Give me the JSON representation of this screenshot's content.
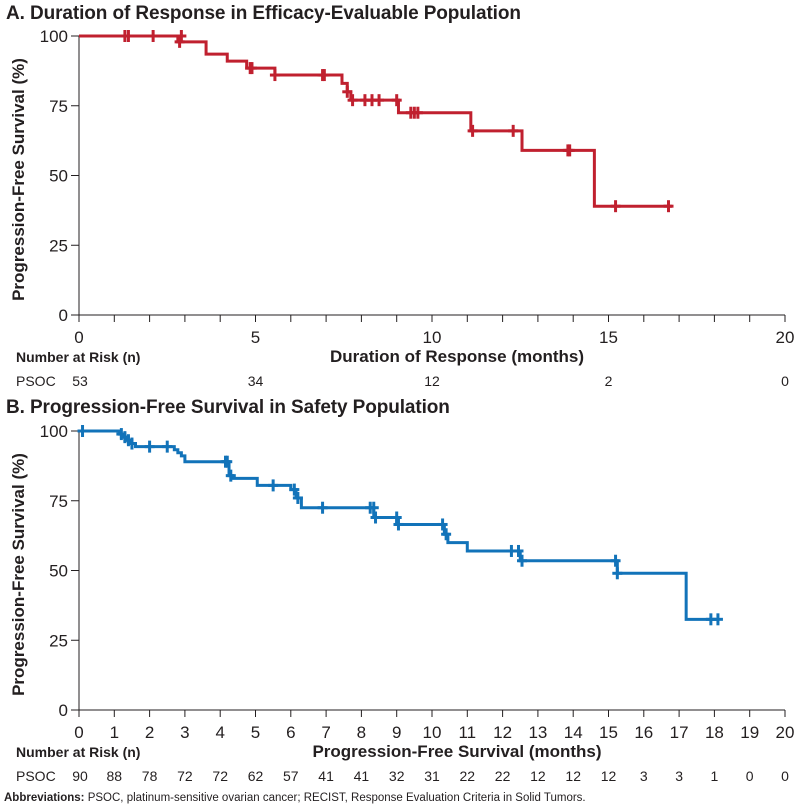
{
  "chart_data": [
    {
      "id": "A",
      "type": "line",
      "subtype": "kaplan-meier",
      "title": "A. Duration of Response in Efficacy-Evaluable Population",
      "xlabel": "Duration of Response (months)",
      "ylabel": "Progression-Free Survival (%)",
      "xlim": [
        0,
        20
      ],
      "ylim": [
        0,
        100
      ],
      "x_ticks": [
        0,
        1,
        2,
        3,
        4,
        5,
        6,
        7,
        8,
        9,
        10,
        11,
        12,
        13,
        14,
        15,
        16,
        17,
        18,
        19,
        20
      ],
      "x_tick_labels": [
        "0",
        "5",
        "10",
        "15",
        "20"
      ],
      "x_tick_label_values": [
        0,
        5,
        10,
        15,
        20
      ],
      "y_ticks": [
        0,
        25,
        50,
        75,
        100
      ],
      "y_tick_labels": [
        "0",
        "25",
        "50",
        "75",
        "100"
      ],
      "grid": false,
      "color": "#C0202F",
      "series": [
        {
          "name": "PSOC",
          "steps": [
            [
              0,
              100
            ],
            [
              2.8,
              97.9
            ],
            [
              3.6,
              93.5
            ],
            [
              4.2,
              91
            ],
            [
              4.75,
              88.5
            ],
            [
              5.55,
              86
            ],
            [
              7.45,
              83
            ],
            [
              7.6,
              80
            ],
            [
              7.7,
              77
            ],
            [
              9.05,
              72.5
            ],
            [
              11.1,
              66
            ],
            [
              12.55,
              59
            ],
            [
              14.6,
              39
            ],
            [
              16.8,
              39
            ]
          ],
          "censored": [
            [
              1.3,
              100
            ],
            [
              1.4,
              100
            ],
            [
              2.1,
              100
            ],
            [
              2.9,
              100
            ],
            [
              2.85,
              97.9
            ],
            [
              4.85,
              88.5
            ],
            [
              4.9,
              88.5
            ],
            [
              5.55,
              86
            ],
            [
              6.9,
              86
            ],
            [
              6.95,
              86
            ],
            [
              7.6,
              80
            ],
            [
              7.75,
              77
            ],
            [
              8.1,
              77
            ],
            [
              8.3,
              77
            ],
            [
              8.5,
              77
            ],
            [
              9.0,
              77
            ],
            [
              9.4,
              72.5
            ],
            [
              9.5,
              72.5
            ],
            [
              9.6,
              72.5
            ],
            [
              11.15,
              66
            ],
            [
              12.3,
              66
            ],
            [
              13.85,
              59
            ],
            [
              13.9,
              59
            ],
            [
              15.2,
              39
            ],
            [
              16.7,
              39
            ]
          ]
        }
      ],
      "risk_table": {
        "header": "Number at Risk (n)",
        "row_label": "PSOC",
        "times": [
          0,
          5,
          10,
          15,
          20
        ],
        "values": [
          "53",
          "34",
          "12",
          "2",
          "0"
        ]
      }
    },
    {
      "id": "B",
      "type": "line",
      "subtype": "kaplan-meier",
      "title": "B.  Progression-Free Survival in Safety Population",
      "xlabel": "Progression-Free Survival (months)",
      "ylabel": "Progression-Free Survival (%)",
      "xlim": [
        0,
        20
      ],
      "ylim": [
        0,
        100
      ],
      "x_ticks": [
        0,
        1,
        2,
        3,
        4,
        5,
        6,
        7,
        8,
        9,
        10,
        11,
        12,
        13,
        14,
        15,
        16,
        17,
        18,
        19,
        20
      ],
      "x_tick_labels": [
        "0",
        "1",
        "2",
        "3",
        "4",
        "5",
        "6",
        "7",
        "8",
        "9",
        "10",
        "11",
        "12",
        "13",
        "14",
        "15",
        "16",
        "17",
        "18",
        "19",
        "20"
      ],
      "x_tick_label_values": [
        0,
        1,
        2,
        3,
        4,
        5,
        6,
        7,
        8,
        9,
        10,
        11,
        12,
        13,
        14,
        15,
        16,
        17,
        18,
        19,
        20
      ],
      "y_ticks": [
        0,
        25,
        50,
        75,
        100
      ],
      "y_tick_labels": [
        "0",
        "25",
        "50",
        "75",
        "100"
      ],
      "grid": false,
      "color": "#1273B9",
      "series": [
        {
          "name": "PSOC",
          "steps": [
            [
              0,
              100
            ],
            [
              1.15,
              98.9
            ],
            [
              1.25,
              97.8
            ],
            [
              1.35,
              96.7
            ],
            [
              1.45,
              95.5
            ],
            [
              1.6,
              94.4
            ],
            [
              2.7,
              93.3
            ],
            [
              2.8,
              92.2
            ],
            [
              2.9,
              91.1
            ],
            [
              3.0,
              89
            ],
            [
              4.25,
              84
            ],
            [
              4.35,
              83
            ],
            [
              5.05,
              80.5
            ],
            [
              6.0,
              79
            ],
            [
              6.15,
              76
            ],
            [
              6.3,
              72.5
            ],
            [
              8.35,
              69
            ],
            [
              9.0,
              66.5
            ],
            [
              10.35,
              63
            ],
            [
              10.45,
              60
            ],
            [
              11.0,
              57
            ],
            [
              12.5,
              53.5
            ],
            [
              15.25,
              49
            ],
            [
              17.2,
              32.5
            ],
            [
              18.1,
              32.5
            ]
          ],
          "censored": [
            [
              0.1,
              100
            ],
            [
              1.2,
              98.9
            ],
            [
              1.3,
              97.8
            ],
            [
              1.4,
              96.7
            ],
            [
              1.5,
              95.5
            ],
            [
              2.0,
              94.4
            ],
            [
              2.5,
              94.4
            ],
            [
              4.15,
              89
            ],
            [
              4.2,
              89
            ],
            [
              4.3,
              84
            ],
            [
              5.5,
              80.5
            ],
            [
              6.1,
              79
            ],
            [
              6.2,
              76
            ],
            [
              6.9,
              72.5
            ],
            [
              8.25,
              72.5
            ],
            [
              8.35,
              72.5
            ],
            [
              8.4,
              69
            ],
            [
              9.0,
              69
            ],
            [
              9.05,
              66.5
            ],
            [
              10.3,
              66.5
            ],
            [
              10.4,
              63
            ],
            [
              12.25,
              57
            ],
            [
              12.45,
              57
            ],
            [
              12.55,
              53.5
            ],
            [
              15.2,
              53.5
            ],
            [
              15.25,
              49
            ],
            [
              17.9,
              32.5
            ],
            [
              18.1,
              32.5
            ]
          ]
        }
      ],
      "risk_table": {
        "header": "Number at Risk (n)",
        "row_label": "PSOC",
        "times": [
          0,
          1,
          2,
          3,
          4,
          5,
          6,
          7,
          8,
          9,
          10,
          11,
          12,
          13,
          14,
          15,
          16,
          17,
          18,
          19,
          20
        ],
        "values": [
          "90",
          "88",
          "78",
          "72",
          "72",
          "62",
          "57",
          "41",
          "41",
          "32",
          "31",
          "22",
          "22",
          "12",
          "12",
          "12",
          "3",
          "3",
          "1",
          "0",
          "0"
        ]
      }
    }
  ],
  "footnote": {
    "label": "Abbreviations:",
    "text": " PSOC, platinum-sensitive ovarian cancer; RECIST, Response Evaluation Criteria in Solid Tumors."
  }
}
